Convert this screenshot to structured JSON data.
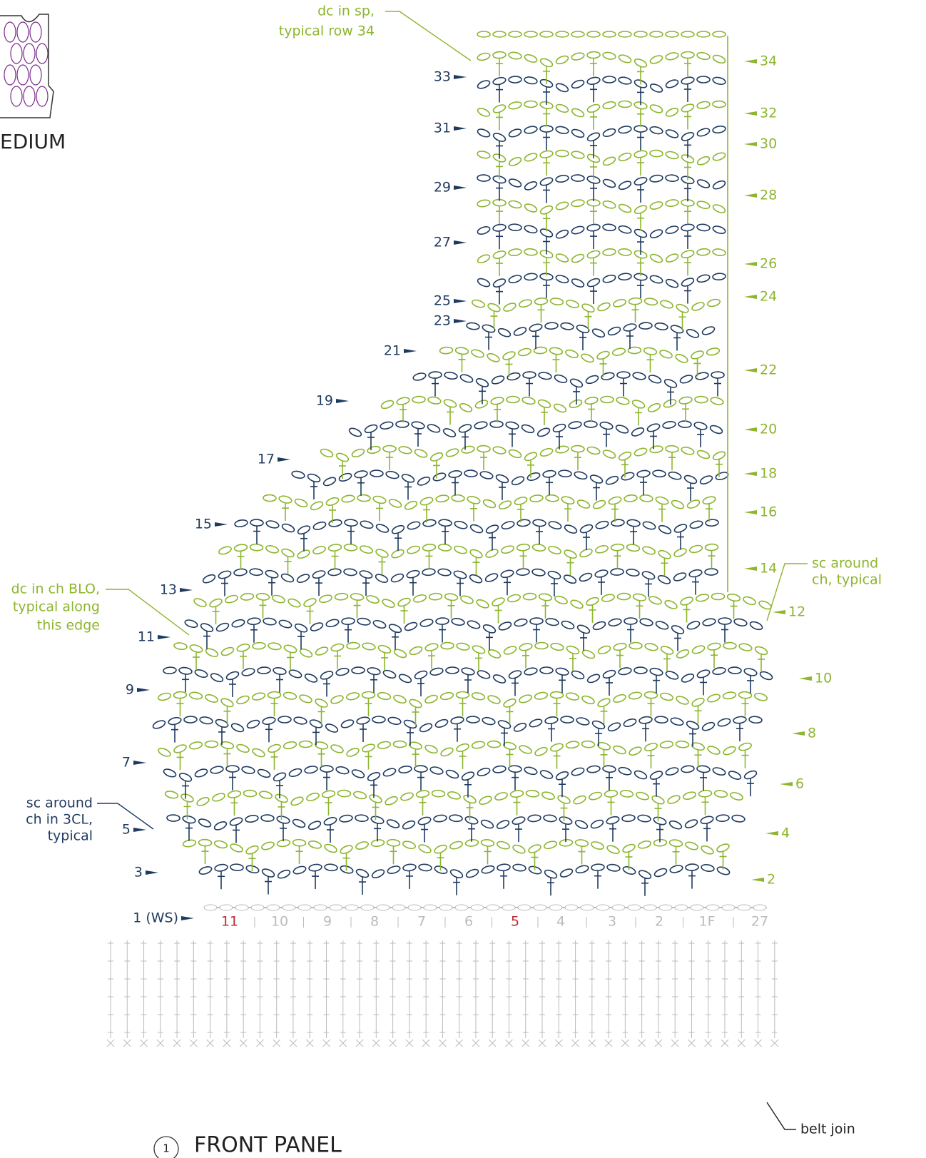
{
  "title": "FRONT PANEL",
  "figure_number": "1",
  "size_label": "EDIUM",
  "rows_left": [
    "33",
    "31",
    "29",
    "27",
    "25",
    "23",
    "21",
    "19",
    "17",
    "15",
    "13",
    "11",
    "9",
    "7",
    "5",
    "3",
    "1 (WS)"
  ],
  "rows_right": [
    "34",
    "32",
    "30",
    "28",
    "26",
    "24",
    "22",
    "20",
    "18",
    "16",
    "14",
    "12",
    "10",
    "8",
    "6",
    "4",
    "2"
  ],
  "columns": [
    "11",
    "10",
    "9",
    "8",
    "7",
    "6",
    "5",
    "4",
    "3",
    "2",
    "1F",
    "27"
  ],
  "annotations": [
    {
      "lines": [
        "dc in sp,",
        "typical row 34"
      ]
    },
    {
      "lines": [
        "sc around",
        "ch, typical"
      ]
    },
    {
      "lines": [
        "dc in ch BLO,",
        "typical along",
        "this edge"
      ]
    },
    {
      "lines": [
        "sc around",
        "ch in 3CL,",
        "typical"
      ]
    },
    {
      "lines": [
        "belt join"
      ]
    }
  ]
}
